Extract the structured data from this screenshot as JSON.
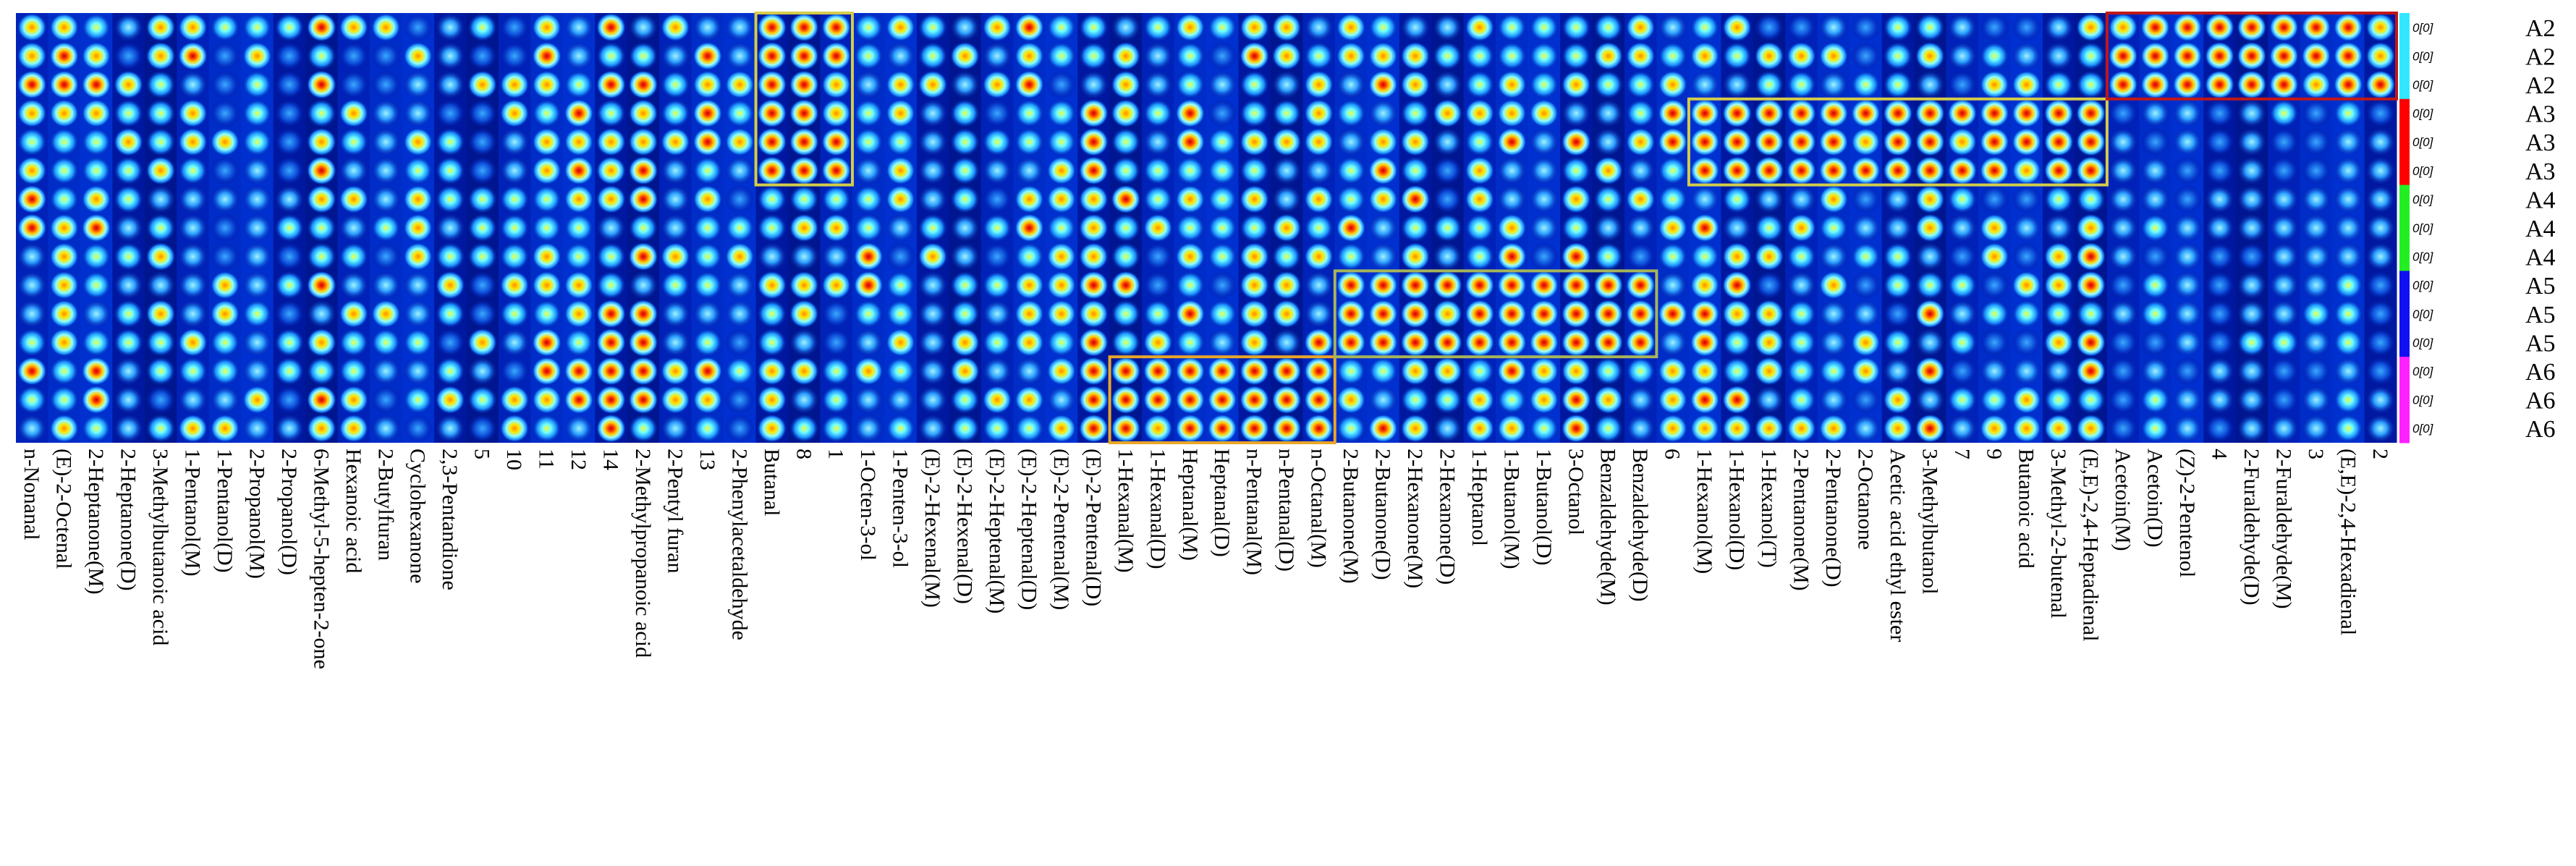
{
  "chart_data": {
    "type": "heatmap",
    "title": "",
    "xlabel": "",
    "ylabel": "",
    "rows": [
      "A2",
      "A2",
      "A2",
      "A3",
      "A3",
      "A3",
      "A4",
      "A4",
      "A4",
      "A5",
      "A5",
      "A5",
      "A6",
      "A6",
      "A6"
    ],
    "group_colors": {
      "A2": "#33e6ff",
      "A3": "#ff0000",
      "A4": "#22ee22",
      "A5": "#1010f0",
      "A6": "#ff20ff"
    },
    "scale_label": "0[0]",
    "columns": [
      "n-Nonanal",
      "(E)-2-Octenal",
      "2-Heptanone(M)",
      "2-Heptanone(D)",
      "3-Methylbutanoic acid",
      "1-Pentanol(M)",
      "1-Pentanol(D)",
      "2-Propanol(M)",
      "2-Propanol(D)",
      "6-Methyl-5-hepten-2-one",
      "Hexanoic acid",
      "2-Butylfuran",
      "Cyclohexanone",
      "2,3-Pentandione",
      "5",
      "10",
      "11",
      "12",
      "14",
      "2-Methylpropanoic acid",
      "2-Pentyl furan",
      "13",
      "2-Phenylacetaldehyde",
      "Butanal",
      "8",
      "1",
      "1-Octen-3-ol",
      "1-Penten-3-ol",
      "(E)-2-Hexenal(M)",
      "(E)-2-Hexenal(D)",
      "(E)-2-Heptenal(M)",
      "(E)-2-Heptenal(D)",
      "(E)-2-Pentenal(M)",
      "(E)-2-Pentenal(D)",
      "1-Hexanal(M)",
      "1-Hexanal(D)",
      "Heptanal(M)",
      "Heptanal(D)",
      "n-Pentanal(M)",
      "n-Pentanal(D)",
      "n-Octanal(M)",
      "2-Butanone(M)",
      "2-Butanone(D)",
      "2-Hexanone(M)",
      "2-Hexanone(D)",
      "1-Heptanol",
      "1-Butanol(M)",
      "1-Butanol(D)",
      "3-Octanol",
      "Benzaldehyde(M)",
      "Benzaldehyde(D)",
      "6",
      "1-Hexanol(M)",
      "1-Hexanol(D)",
      "1-Hexanol(T)",
      "2-Pentanone(M)",
      "2-Pentanone(D)",
      "2-Octanone",
      "Acetic acid ethyl ester",
      "3-Methylbutanol",
      "7",
      "9",
      "Butanoic acid",
      "3-Methyl-2-butenal",
      "(E,E)-2,4-Heptadienal",
      "Acetoin(M)",
      "Acetoin(D)",
      "(Z)-2-Pentenol",
      "4",
      "2-Furaldehyde(D)",
      "2-Furaldehyde(M)",
      "3",
      "(E,E)-2,4-Hexadienal",
      "2"
    ],
    "highlight_boxes": [
      {
        "color": "#d4cc4a",
        "col_start": 23,
        "col_end": 25,
        "row_start": 0,
        "row_end": 5
      },
      {
        "color": "#e8a628",
        "col_start": 34,
        "col_end": 40,
        "row_start": 12,
        "row_end": 14
      },
      {
        "color": "#a6b45a",
        "col_start": 41,
        "col_end": 50,
        "row_start": 9,
        "row_end": 11
      },
      {
        "color": "#d4cc4a",
        "col_start": 52,
        "col_end": 64,
        "row_start": 3,
        "row_end": 5
      },
      {
        "color": "#c01818",
        "col_start": 65,
        "col_end": 73,
        "row_start": 0,
        "row_end": 2
      }
    ]
  }
}
